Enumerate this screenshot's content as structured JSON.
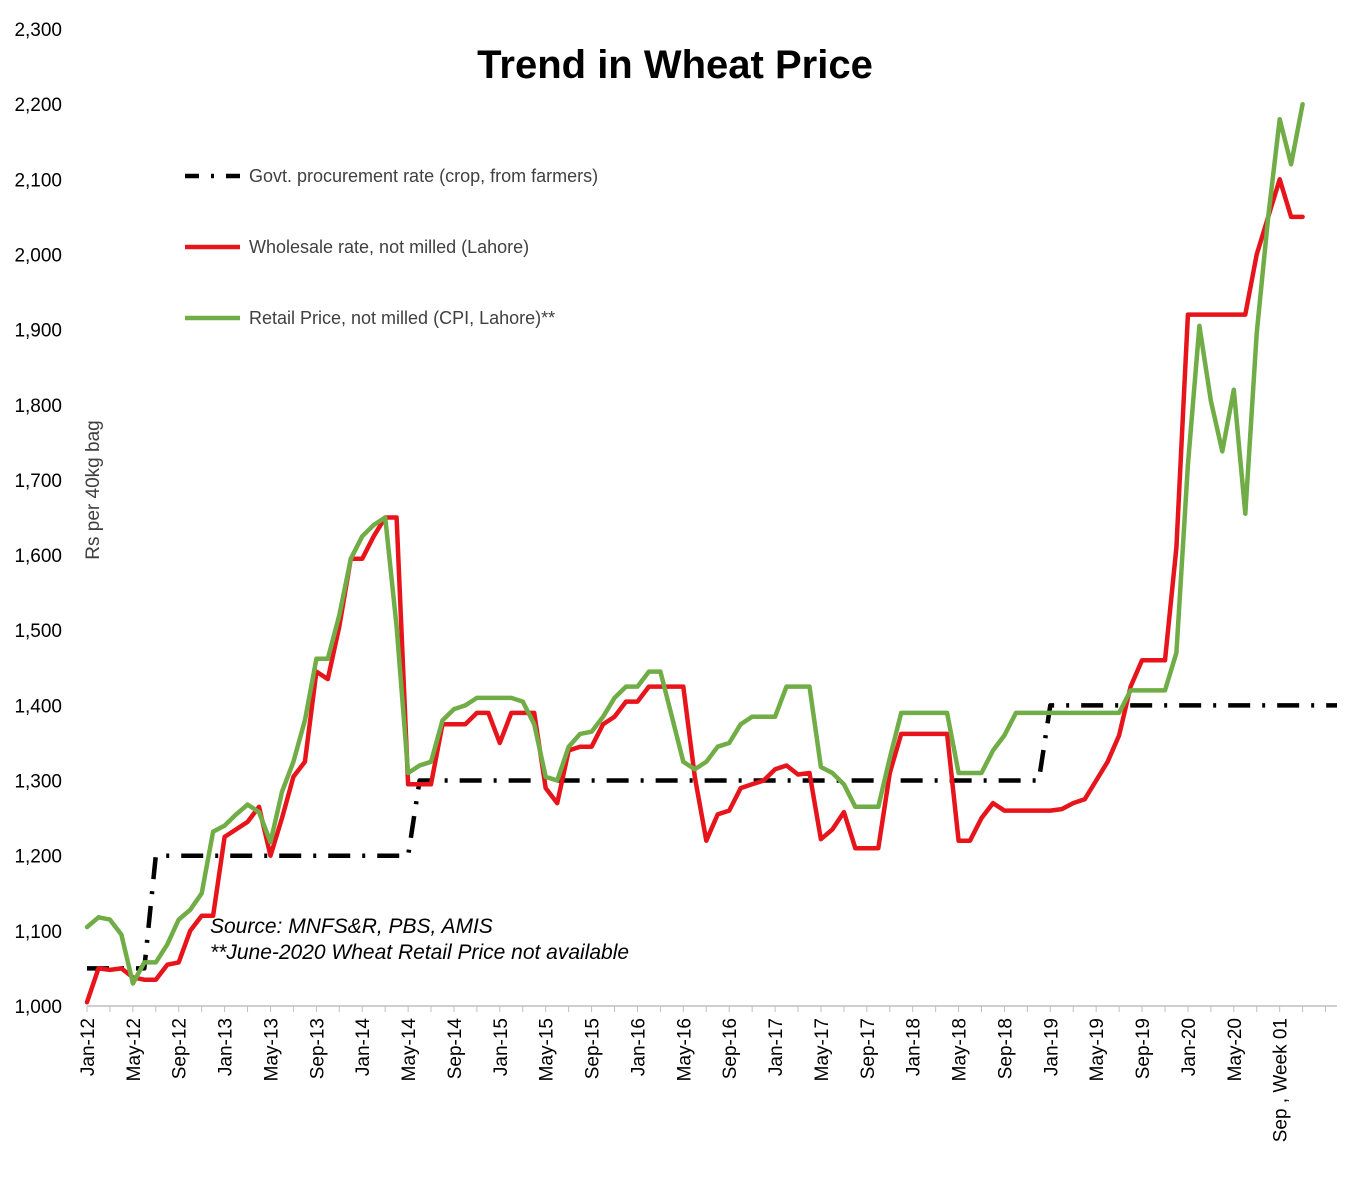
{
  "chart_data": {
    "type": "line",
    "title": "Trend in Wheat Price",
    "ylabel": "Rs per 40kg bag",
    "xlabel": "",
    "ylim": [
      1000,
      2300
    ],
    "yticks": [
      "1,000",
      "1,100",
      "1,200",
      "1,300",
      "1,400",
      "1,500",
      "1,600",
      "1,700",
      "1,800",
      "1,900",
      "2,000",
      "2,100",
      "2,200",
      "2,300"
    ],
    "ytick_values": [
      1000,
      1100,
      1200,
      1300,
      1400,
      1500,
      1600,
      1700,
      1800,
      1900,
      2000,
      2100,
      2200,
      2300
    ],
    "x_tick_labels": [
      {
        "index": 0,
        "label": "Jan-12"
      },
      {
        "index": 4,
        "label": "May-12"
      },
      {
        "index": 8,
        "label": "Sep-12"
      },
      {
        "index": 12,
        "label": "Jan-13"
      },
      {
        "index": 16,
        "label": "May-13"
      },
      {
        "index": 20,
        "label": "Sep-13"
      },
      {
        "index": 24,
        "label": "Jan-14"
      },
      {
        "index": 28,
        "label": "May-14"
      },
      {
        "index": 32,
        "label": "Sep-14"
      },
      {
        "index": 36,
        "label": "Jan-15"
      },
      {
        "index": 40,
        "label": "May-15"
      },
      {
        "index": 44,
        "label": "Sep-15"
      },
      {
        "index": 48,
        "label": "Jan-16"
      },
      {
        "index": 52,
        "label": "May-16"
      },
      {
        "index": 56,
        "label": "Sep-16"
      },
      {
        "index": 60,
        "label": "Jan-17"
      },
      {
        "index": 64,
        "label": "May-17"
      },
      {
        "index": 68,
        "label": "Sep-17"
      },
      {
        "index": 72,
        "label": "Jan-18"
      },
      {
        "index": 76,
        "label": "May-18"
      },
      {
        "index": 80,
        "label": "Sep-18"
      },
      {
        "index": 84,
        "label": "Jan-19"
      },
      {
        "index": 88,
        "label": "May-19"
      },
      {
        "index": 92,
        "label": "Sep-19"
      },
      {
        "index": 96,
        "label": "Jan-20"
      },
      {
        "index": 100,
        "label": "May-20"
      },
      {
        "index": 104,
        "label": "Sep , Week 01"
      }
    ],
    "series": [
      {
        "name": "Govt. procurement rate (crop, from farmers)",
        "color": "#000000",
        "style": "dash-dot",
        "values": [
          1050,
          1050,
          1050,
          1050,
          1050,
          1050,
          1200,
          1200,
          1200,
          1200,
          1200,
          1200,
          1200,
          1200,
          1200,
          1200,
          1200,
          1200,
          1200,
          1200,
          1200,
          1200,
          1200,
          1200,
          1200,
          1200,
          1200,
          1200,
          1200,
          1300,
          1300,
          1300,
          1300,
          1300,
          1300,
          1300,
          1300,
          1300,
          1300,
          1300,
          1300,
          1300,
          1300,
          1300,
          1300,
          1300,
          1300,
          1300,
          1300,
          1300,
          1300,
          1300,
          1300,
          1300,
          1300,
          1300,
          1300,
          1300,
          1300,
          1300,
          1300,
          1300,
          1300,
          1300,
          1300,
          1300,
          1300,
          1300,
          1300,
          1300,
          1300,
          1300,
          1300,
          1300,
          1300,
          1300,
          1300,
          1300,
          1300,
          1300,
          1300,
          1300,
          1300,
          1300,
          1400,
          1400,
          1400,
          1400,
          1400,
          1400,
          1400,
          1400,
          1400,
          1400,
          1400,
          1400,
          1400,
          1400,
          1400,
          1400,
          1400,
          1400,
          1400,
          1400,
          1400,
          1400,
          1400,
          1400,
          1400,
          1400
        ]
      },
      {
        "name": "Wholesale rate, not milled (Lahore)",
        "color": "#e8141b",
        "style": "solid",
        "values": [
          1005,
          1050,
          1048,
          1050,
          1038,
          1035,
          1035,
          1055,
          1058,
          1100,
          1120,
          1120,
          1225,
          1235,
          1245,
          1265,
          1200,
          1250,
          1305,
          1325,
          1445,
          1435,
          1505,
          1595,
          1595,
          1625,
          1650,
          1650,
          1295,
          1295,
          1295,
          1375,
          1375,
          1375,
          1390,
          1390,
          1350,
          1390,
          1390,
          1390,
          1290,
          1270,
          1340,
          1345,
          1345,
          1375,
          1385,
          1405,
          1405,
          1425,
          1425,
          1425,
          1425,
          1305,
          1220,
          1255,
          1260,
          1290,
          1295,
          1300,
          1315,
          1320,
          1308,
          1310,
          1222,
          1235,
          1258,
          1210,
          1210,
          1210,
          1310,
          1362,
          1362,
          1362,
          1362,
          1362,
          1220,
          1220,
          1250,
          1270,
          1260,
          1260,
          1260,
          1260,
          1260,
          1262,
          1270,
          1275,
          1300,
          1325,
          1360,
          1425,
          1460,
          1460,
          1460,
          1610,
          1920,
          1920,
          1920,
          1920,
          1920,
          1920,
          2000,
          2050,
          2100,
          2050,
          2050
        ]
      },
      {
        "name": "Retail Price, not milled (CPI, Lahore)**",
        "color": "#70ad47",
        "style": "solid",
        "values": [
          1105,
          1118,
          1115,
          1095,
          1030,
          1058,
          1058,
          1082,
          1115,
          1128,
          1150,
          1232,
          1240,
          1255,
          1268,
          1258,
          1218,
          1285,
          1325,
          1380,
          1462,
          1462,
          1520,
          1595,
          1625,
          1640,
          1650,
          1505,
          1310,
          1320,
          1325,
          1380,
          1395,
          1400,
          1410,
          1410,
          1410,
          1410,
          1405,
          1375,
          1305,
          1300,
          1345,
          1362,
          1365,
          1385,
          1410,
          1425,
          1425,
          1445,
          1445,
          1385,
          1325,
          1315,
          1325,
          1345,
          1350,
          1375,
          1385,
          1385,
          1385,
          1425,
          1425,
          1425,
          1318,
          1310,
          1295,
          1265,
          1265,
          1265,
          1330,
          1390,
          1390,
          1390,
          1390,
          1390,
          1310,
          1310,
          1310,
          1340,
          1360,
          1390,
          1390,
          1390,
          1390,
          1390,
          1390,
          1390,
          1390,
          1390,
          1390,
          1420,
          1420,
          1420,
          1420,
          1470,
          1720,
          1905,
          1805,
          1738,
          1820,
          1655,
          1895,
          2050,
          2180,
          2120,
          2200
        ]
      }
    ],
    "annotations": [
      "Source: MNFS&R, PBS, AMIS",
      "**June-2020 Wheat Retail Price not available"
    ],
    "grid": false,
    "legend_position": "top-left"
  }
}
